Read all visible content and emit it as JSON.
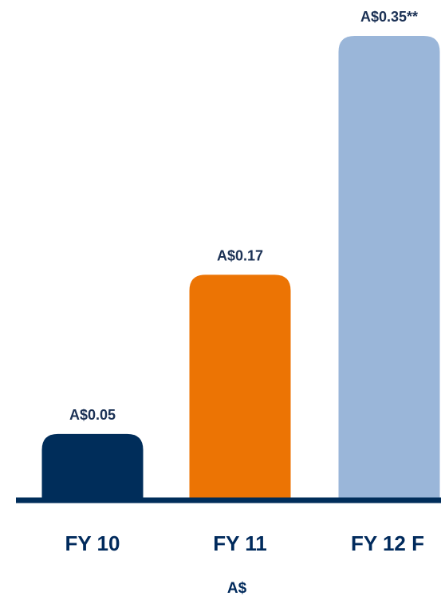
{
  "chart_data": {
    "type": "bar",
    "categories": [
      "FY 10",
      "FY 11",
      "FY 12 F"
    ],
    "values": [
      0.05,
      0.17,
      0.35
    ],
    "data_labels": [
      "A$0.05",
      "A$0.17",
      "A$0.35**"
    ],
    "xlabel": "A$",
    "ylabel": "",
    "ylim": [
      0,
      0.35
    ],
    "grid": false,
    "legend": "none",
    "colors": [
      "#002d5a",
      "#ec7404",
      "#9ab6d9"
    ],
    "baseline_color": "#002d5a"
  }
}
